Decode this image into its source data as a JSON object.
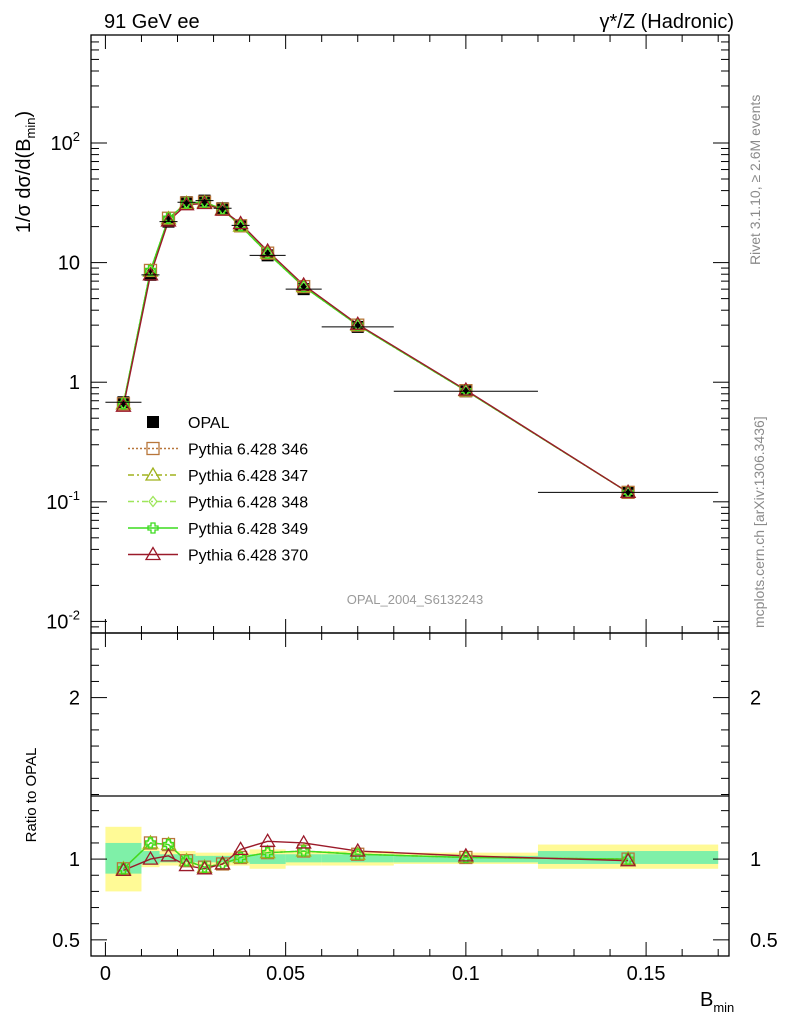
{
  "header": {
    "left": "91 GeV ee",
    "right": "γ*/Z (Hadronic)"
  },
  "side_labels": {
    "rivet": "Rivet 3.1.10, ≥ 2.6M events",
    "mcplots": "mcplots.cern.ch [arXiv:1306.3436]"
  },
  "watermark": "OPAL_2004_S6132243",
  "axes": {
    "ylabel_main": "1/σ dσ/d(B_min)",
    "ylabel_ratio": "Ratio to OPAL",
    "xlabel": "B_min",
    "x_ticks": [
      "0",
      "0.05",
      "0.1",
      "0.15"
    ],
    "y_main_ticks": [
      "10^-2",
      "10^-1",
      "1",
      "10",
      "10^2"
    ],
    "y_ratio_ticks": [
      "0.5",
      "1",
      "2"
    ]
  },
  "colors": {
    "opal": "#000000",
    "p346": "#b8763a",
    "p347": "#a0b21e",
    "p348": "#9ee65a",
    "p349": "#3cdc1e",
    "p370": "#9b1a2a",
    "band_inner": "#7ff0a8",
    "band_outer": "#fffa96"
  },
  "chart_data": [
    {
      "type": "scatter",
      "scale": "log",
      "xlim": [
        -0.004,
        0.173
      ],
      "ylim": [
        0.008,
        800
      ],
      "x": [
        0.005,
        0.0125,
        0.0175,
        0.0225,
        0.0275,
        0.0325,
        0.0375,
        0.045,
        0.055,
        0.07,
        0.1,
        0.145
      ],
      "legend_position": "lower-left",
      "series": [
        {
          "name": "OPAL",
          "marker": "filled-square",
          "values": [
            0.68,
            7.9,
            22,
            32,
            33,
            28.5,
            20.5,
            11.5,
            6.0,
            2.9,
            0.84,
            0.12
          ]
        },
        {
          "name": "Pythia 6.428 346",
          "marker": "open-square",
          "line": "dotted",
          "values": [
            0.66,
            8.6,
            23.5,
            31.5,
            32,
            28,
            20.3,
            12.0,
            6.3,
            3.0,
            0.85,
            0.12
          ]
        },
        {
          "name": "Pythia 6.428 347",
          "marker": "open-triangle",
          "line": "dash-dot",
          "values": [
            0.66,
            8.5,
            23.3,
            31.3,
            31.8,
            27.8,
            20.2,
            12.0,
            6.3,
            3.0,
            0.85,
            0.12
          ]
        },
        {
          "name": "Pythia 6.428 348",
          "marker": "open-diamond",
          "line": "dash-dot",
          "values": [
            0.66,
            8.6,
            23.4,
            31.4,
            31.9,
            27.9,
            20.3,
            12.0,
            6.3,
            3.0,
            0.85,
            0.12
          ]
        },
        {
          "name": "Pythia 6.428 349",
          "marker": "open-cross",
          "line": "solid",
          "values": [
            0.66,
            8.6,
            23.5,
            31.5,
            32,
            28,
            20.3,
            12.0,
            6.3,
            3.0,
            0.85,
            0.12
          ]
        },
        {
          "name": "Pythia 6.428 370",
          "marker": "open-triangle",
          "line": "solid",
          "values": [
            0.63,
            7.9,
            22.3,
            30.5,
            31.2,
            27.5,
            21.2,
            12.5,
            6.5,
            3.05,
            0.86,
            0.12
          ]
        }
      ]
    },
    {
      "type": "line",
      "title": "Ratio to OPAL",
      "xlim": [
        -0.004,
        0.173
      ],
      "ylim": [
        0.4,
        2.4
      ],
      "x": [
        0.005,
        0.0125,
        0.0175,
        0.0225,
        0.0275,
        0.0325,
        0.0375,
        0.045,
        0.055,
        0.07,
        0.1,
        0.145
      ],
      "bands": [
        {
          "x0": 0.0,
          "x1": 0.01,
          "inner": [
            0.91,
            1.1
          ],
          "outer": [
            0.8,
            1.2
          ]
        },
        {
          "x0": 0.01,
          "x1": 0.015,
          "inner": [
            0.97,
            1.05
          ],
          "outer": [
            0.95,
            1.07
          ]
        },
        {
          "x0": 0.015,
          "x1": 0.02,
          "inner": [
            0.98,
            1.03
          ],
          "outer": [
            0.96,
            1.05
          ]
        },
        {
          "x0": 0.02,
          "x1": 0.025,
          "inner": [
            0.98,
            1.03
          ],
          "outer": [
            0.96,
            1.05
          ]
        },
        {
          "x0": 0.025,
          "x1": 0.03,
          "inner": [
            0.98,
            1.02
          ],
          "outer": [
            0.96,
            1.04
          ]
        },
        {
          "x0": 0.03,
          "x1": 0.035,
          "inner": [
            0.98,
            1.02
          ],
          "outer": [
            0.96,
            1.04
          ]
        },
        {
          "x0": 0.035,
          "x1": 0.04,
          "inner": [
            0.98,
            1.02
          ],
          "outer": [
            0.96,
            1.04
          ]
        },
        {
          "x0": 0.04,
          "x1": 0.05,
          "inner": [
            0.97,
            1.03
          ],
          "outer": [
            0.94,
            1.06
          ]
        },
        {
          "x0": 0.05,
          "x1": 0.06,
          "inner": [
            0.98,
            1.03
          ],
          "outer": [
            0.96,
            1.05
          ]
        },
        {
          "x0": 0.06,
          "x1": 0.08,
          "inner": [
            0.98,
            1.03
          ],
          "outer": [
            0.96,
            1.05
          ]
        },
        {
          "x0": 0.08,
          "x1": 0.12,
          "inner": [
            0.98,
            1.02
          ],
          "outer": [
            0.97,
            1.04
          ]
        },
        {
          "x0": 0.12,
          "x1": 0.17,
          "inner": [
            0.97,
            1.05
          ],
          "outer": [
            0.94,
            1.09
          ]
        }
      ],
      "series": [
        {
          "name": "Pythia 6.428 346",
          "values": [
            0.94,
            1.1,
            1.09,
            0.99,
            0.95,
            0.97,
            1.01,
            1.04,
            1.05,
            1.03,
            1.01,
            1.0
          ]
        },
        {
          "name": "Pythia 6.428 347",
          "values": [
            0.94,
            1.1,
            1.09,
            0.99,
            0.95,
            0.97,
            1.01,
            1.04,
            1.05,
            1.03,
            1.01,
            1.0
          ]
        },
        {
          "name": "Pythia 6.428 348",
          "values": [
            0.94,
            1.1,
            1.09,
            0.99,
            0.95,
            0.97,
            1.01,
            1.04,
            1.05,
            1.03,
            1.01,
            1.0
          ]
        },
        {
          "name": "Pythia 6.428 349",
          "values": [
            0.94,
            1.1,
            1.09,
            0.99,
            0.95,
            0.97,
            1.01,
            1.04,
            1.05,
            1.03,
            1.01,
            1.0
          ]
        },
        {
          "name": "Pythia 6.428 370",
          "values": [
            0.93,
            1.0,
            1.02,
            0.96,
            0.94,
            0.97,
            1.06,
            1.11,
            1.1,
            1.05,
            1.02,
            0.99
          ]
        }
      ]
    }
  ]
}
